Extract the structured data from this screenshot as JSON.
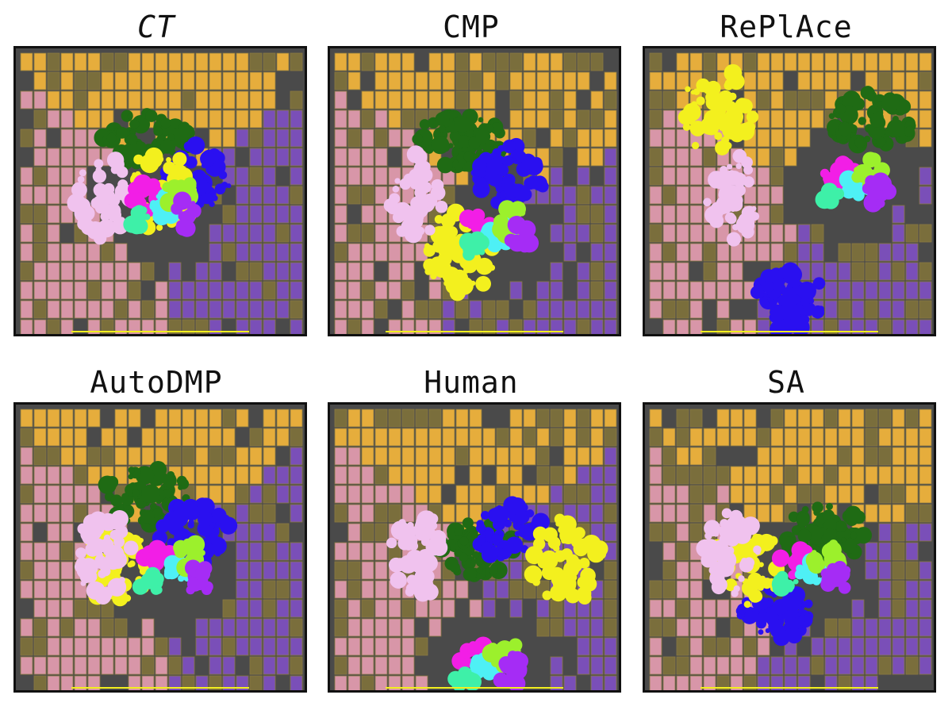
{
  "figure": {
    "panels": [
      {
        "id": "ct",
        "label": "CT",
        "italic": true,
        "seed": 11,
        "cluster": [
          0.48,
          0.52
        ],
        "regions": {
          "pink": "left",
          "orange": "top",
          "purple": "right",
          "green": "center-top",
          "blue": "center-right",
          "yellow": "center"
        }
      },
      {
        "id": "cmp",
        "label": "CMP",
        "italic": false,
        "seed": 23,
        "cluster": [
          0.55,
          0.62
        ],
        "regions": {
          "pink": "left",
          "orange": "top",
          "purple": "bottom-right",
          "green": "center-top",
          "blue": "center-right",
          "yellow": "center-bottom"
        }
      },
      {
        "id": "replace",
        "label": "RePlAce",
        "italic": false,
        "seed": 37,
        "cluster": [
          0.7,
          0.45
        ],
        "regions": {
          "pink": "left",
          "orange": "top",
          "purple": "bottom-right",
          "green": "top-right",
          "blue": "bottom",
          "yellow": "top-left"
        }
      },
      {
        "id": "autodmp",
        "label": "AutoDMP",
        "italic": false,
        "seed": 41,
        "cluster": [
          0.52,
          0.55
        ],
        "regions": {
          "pink": "left",
          "orange": "top",
          "purple": "right",
          "green": "center-top",
          "blue": "center-right",
          "yellow": "center-left"
        }
      },
      {
        "id": "human",
        "label": "Human",
        "italic": false,
        "seed": 53,
        "cluster": [
          0.52,
          0.88
        ],
        "regions": {
          "pink": "left",
          "orange": "top",
          "purple": "right",
          "green": "center",
          "blue": "center-right",
          "yellow": "right"
        }
      },
      {
        "id": "sa",
        "label": "SA",
        "italic": false,
        "seed": 67,
        "cluster": [
          0.55,
          0.55
        ],
        "regions": {
          "pink": "left",
          "orange": "top",
          "purple": "bottom-right",
          "green": "center-right",
          "blue": "center-bottom",
          "yellow": "center-left"
        }
      }
    ],
    "colors": {
      "background": "#4a4a4a",
      "pink": "#d896a8",
      "orange": "#e6ad3c",
      "olive": "#7a6e3c",
      "purple": "#7a4fb8",
      "yellow": "#f3f01e",
      "dark_green": "#1f6b14",
      "blue": "#2a10f0",
      "magenta": "#f21ee6",
      "cyan": "#4ef0f5",
      "lime": "#9cf02c",
      "violet": "#a52cf5",
      "light_pink": "#f0c2ee",
      "mint": "#3ef0a8"
    }
  }
}
